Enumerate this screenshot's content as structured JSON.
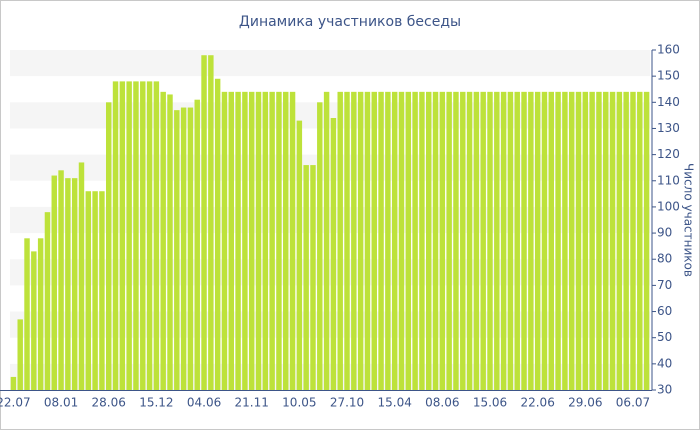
{
  "chart_data": {
    "type": "bar",
    "title": "Динамика участников беседы",
    "y_axis_label": "Число участников",
    "categories": [
      "22.07",
      null,
      null,
      null,
      null,
      null,
      null,
      "08.01",
      null,
      null,
      null,
      null,
      null,
      null,
      "28.06",
      null,
      null,
      null,
      null,
      null,
      null,
      "15.12",
      null,
      null,
      null,
      null,
      null,
      null,
      "04.06",
      null,
      null,
      null,
      null,
      null,
      null,
      "21.11",
      null,
      null,
      null,
      null,
      null,
      null,
      "10.05",
      null,
      null,
      null,
      null,
      null,
      null,
      "27.10",
      null,
      null,
      null,
      null,
      null,
      null,
      "15.04",
      null,
      null,
      null,
      null,
      null,
      null,
      "08.06",
      null,
      null,
      null,
      null,
      null,
      null,
      "15.06",
      null,
      null,
      null,
      null,
      null,
      null,
      "22.06",
      null,
      null,
      null,
      null,
      null,
      null,
      "29.06",
      null,
      null,
      null,
      null,
      null,
      null,
      "06.07",
      null,
      null
    ],
    "values": [
      35,
      57,
      88,
      83,
      88,
      98,
      112,
      114,
      111,
      111,
      117,
      106,
      106,
      106,
      140,
      148,
      148,
      148,
      148,
      148,
      148,
      148,
      144,
      143,
      137,
      138,
      138,
      141,
      158,
      158,
      149,
      144,
      144,
      144,
      144,
      144,
      144,
      144,
      144,
      144,
      144,
      144,
      133,
      116,
      116,
      140,
      144,
      134,
      144,
      144,
      144,
      144,
      144,
      144,
      144,
      144,
      144,
      144,
      144,
      144,
      144,
      144,
      144,
      144,
      144,
      144,
      144,
      144,
      144,
      144,
      144,
      144,
      144,
      144,
      144,
      144,
      144,
      144,
      144,
      144,
      144,
      144,
      144,
      144,
      144,
      144,
      144,
      144,
      144,
      144,
      144,
      144,
      144,
      144
    ],
    "color": "#bde23a",
    "ylim": [
      30,
      160
    ],
    "yticks": [
      30,
      40,
      50,
      60,
      70,
      80,
      90,
      100,
      110,
      120,
      130,
      140,
      150,
      160
    ],
    "y_axis_side": "right",
    "grid": "bands"
  }
}
